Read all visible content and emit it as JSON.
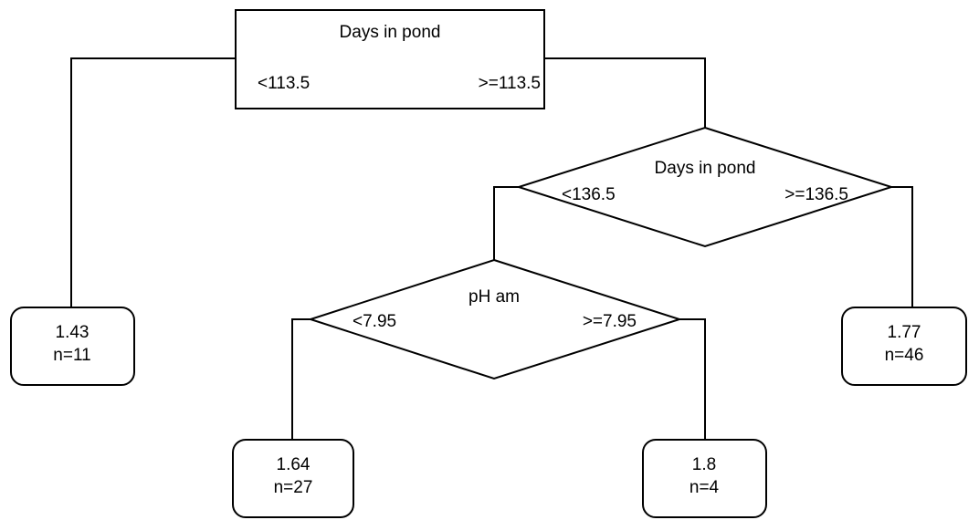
{
  "tree": {
    "root": {
      "label": "Days in pond",
      "left_branch": "<113.5",
      "right_branch": ">=113.5"
    },
    "split_2": {
      "label": "Days in pond",
      "left_branch": "<136.5",
      "right_branch": ">=136.5"
    },
    "split_3": {
      "label": "pH am",
      "left_branch": "<7.95",
      "right_branch": ">=7.95"
    },
    "leaves": {
      "leaf_1": {
        "value": "1.43",
        "count": "n=11"
      },
      "leaf_2": {
        "value": "1.64",
        "count": "n=27"
      },
      "leaf_3": {
        "value": "1.8",
        "count": "n=4"
      },
      "leaf_4": {
        "value": "1.77",
        "count": "n=46"
      }
    }
  }
}
